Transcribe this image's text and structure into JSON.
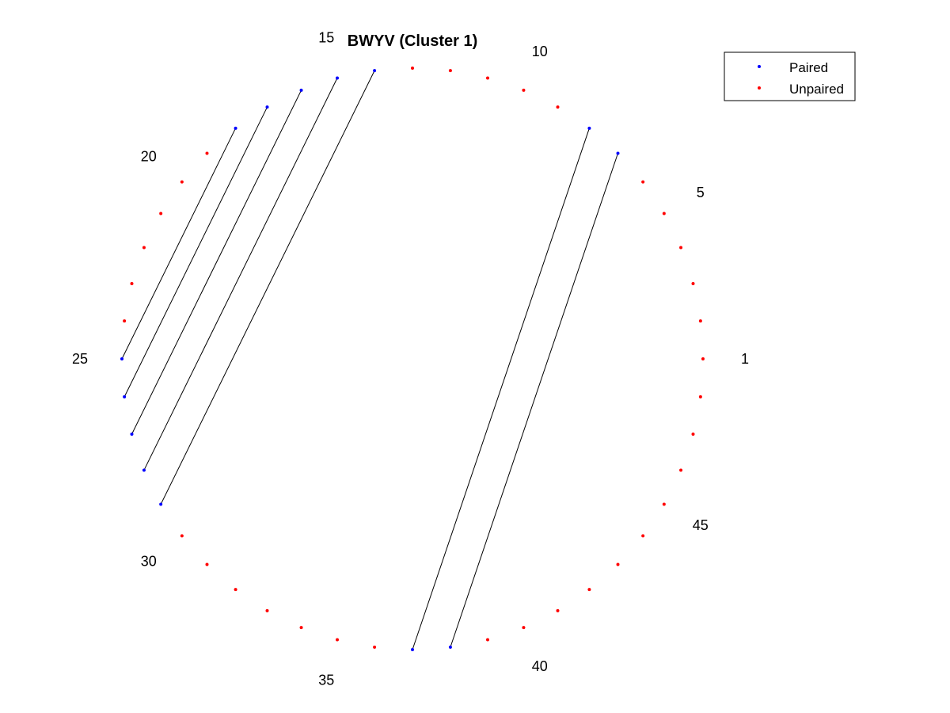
{
  "chart_data": {
    "type": "scatter",
    "title": "BWYV (Cluster 1)",
    "n_positions": 48,
    "start_angle_deg": 0,
    "direction": "counterclockwise",
    "position_labels": [
      1,
      5,
      10,
      15,
      20,
      25,
      30,
      35,
      40,
      45
    ],
    "paired_positions": [
      7,
      8,
      14,
      15,
      16,
      17,
      18,
      25,
      26,
      27,
      28,
      29,
      37,
      38
    ],
    "pairs": [
      [
        7,
        38
      ],
      [
        8,
        37
      ],
      [
        14,
        29
      ],
      [
        15,
        28
      ],
      [
        16,
        27
      ],
      [
        17,
        26
      ],
      [
        18,
        25
      ]
    ],
    "series": [
      {
        "name": "Paired",
        "color": "#0000ff"
      },
      {
        "name": "Unpaired",
        "color": "#ff0000"
      }
    ],
    "line_color": "#000000",
    "legend_position": "top-right",
    "grid": false
  }
}
